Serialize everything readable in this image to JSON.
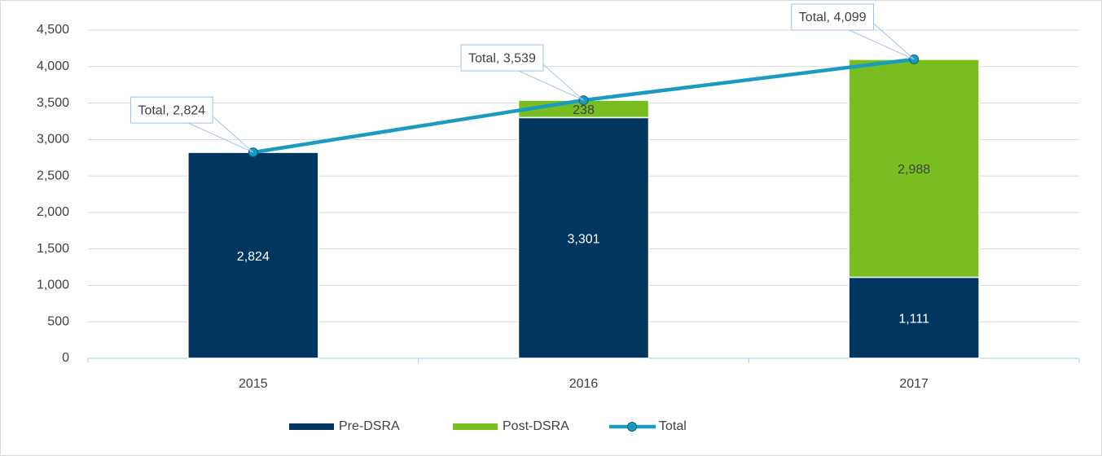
{
  "chart_data": {
    "type": "bar",
    "stacked": true,
    "categories": [
      "2015",
      "2016",
      "2017"
    ],
    "series": [
      {
        "name": "Pre-DSRA",
        "color": "#003660",
        "values": [
          2824,
          3301,
          1111
        ],
        "value_labels": [
          "2,824",
          "3,301",
          "1,111"
        ],
        "label_color": "#ffffff"
      },
      {
        "name": "Post-DSRA",
        "color": "#78be20",
        "values": [
          null,
          238,
          2988
        ],
        "value_labels": [
          null,
          "238",
          "2,988"
        ],
        "label_color": "#404040"
      },
      {
        "name": "Total",
        "type": "line",
        "color": "#1a9bbf",
        "values": [
          2824,
          3539,
          4099
        ],
        "value_labels": [
          "Total, 2,824",
          "Total, 3,539",
          "Total, 4,099"
        ]
      }
    ],
    "ylim": [
      0,
      4500
    ],
    "yticks": [
      0,
      500,
      {
        "value": 1000,
        "label": "1,000"
      },
      {
        "value": 1500,
        "label": "1,500"
      },
      {
        "value": 2000,
        "label": "2,000"
      },
      {
        "value": 2500,
        "label": "2,500"
      },
      {
        "value": 3000,
        "label": "3,000"
      },
      {
        "value": 3500,
        "label": "3,500"
      },
      {
        "value": 4000,
        "label": "4,000"
      },
      {
        "value": 4500,
        "label": "4,500"
      }
    ],
    "grid": true,
    "legend": "bottom"
  }
}
